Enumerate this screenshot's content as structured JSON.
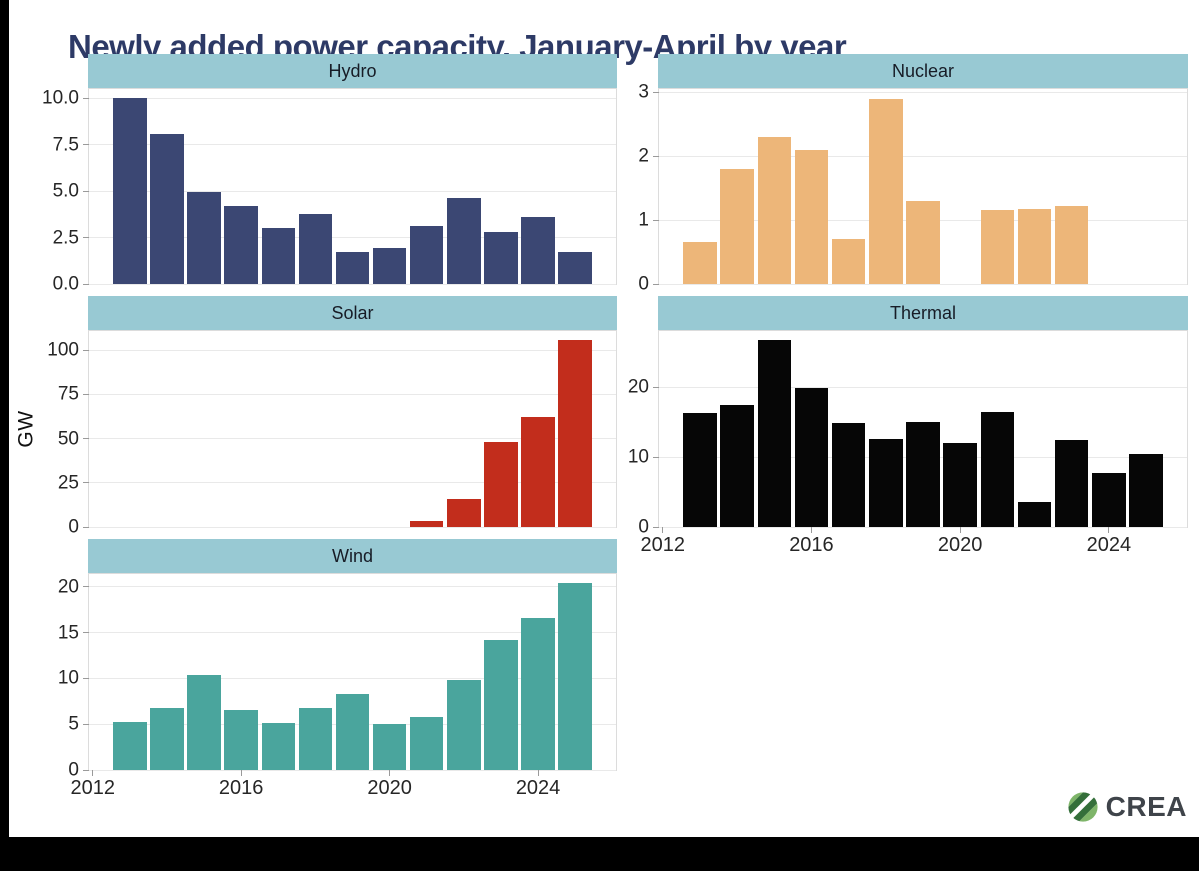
{
  "page": {
    "title": "Newly added power capacity, January-April by year",
    "ylabel": "GW",
    "logo_text": "CREA",
    "colors": {
      "title": "#2d3a66",
      "header_strip": "#98c9d3",
      "gridline": "#e9e9e9",
      "axis_text": "#262626",
      "black_band": "#000000",
      "logo_text": "#3f444a",
      "logo_green_light": "#7eb569",
      "logo_green_dark": "#346f3a"
    }
  },
  "chart_common": {
    "x_domain": [
      2011.9,
      2026.1
    ],
    "xticks": [
      2012,
      2016,
      2020,
      2024
    ],
    "xtick_labels": [
      "2012",
      "2016",
      "2020",
      "2024"
    ],
    "xlabel": "",
    "grid": "horizontal-major-only",
    "legend": "none"
  },
  "chart_data": [
    {
      "type": "bar",
      "title": "Hydro",
      "color": "#3b4773",
      "years": [
        2013,
        2014,
        2015,
        2016,
        2017,
        2018,
        2019,
        2020,
        2021,
        2022,
        2023,
        2024,
        2025
      ],
      "values": [
        10.0,
        8.1,
        4.95,
        4.2,
        3.0,
        3.75,
        1.75,
        1.95,
        3.1,
        4.65,
        2.8,
        3.6,
        1.75
      ],
      "ylim": [
        0,
        10.5
      ],
      "yticks": [
        0,
        2.5,
        5.0,
        7.5,
        10.0
      ],
      "ytick_labels": [
        "0.0",
        "2.5",
        "5.0",
        "7.5",
        "10.0"
      ],
      "show_x_axis": false
    },
    {
      "type": "bar",
      "title": "Nuclear",
      "color": "#edb679",
      "years": [
        2013,
        2014,
        2015,
        2016,
        2017,
        2018,
        2019,
        2020,
        2021,
        2022,
        2023,
        2024,
        2025
      ],
      "values": [
        0.65,
        1.8,
        2.3,
        2.1,
        0.7,
        2.9,
        1.3,
        null,
        1.15,
        1.17,
        1.22,
        null,
        null
      ],
      "ylim": [
        0,
        3.05
      ],
      "yticks": [
        0,
        1,
        2,
        3
      ],
      "ytick_labels": [
        "0",
        "1",
        "2",
        "3"
      ],
      "show_x_axis": false
    },
    {
      "type": "bar",
      "title": "Solar",
      "color": "#c22d1c",
      "years": [
        2013,
        2014,
        2015,
        2016,
        2017,
        2018,
        2019,
        2020,
        2021,
        2022,
        2023,
        2024,
        2025
      ],
      "values": [
        null,
        null,
        null,
        null,
        null,
        null,
        null,
        null,
        3.2,
        15.8,
        48,
        62,
        105.5
      ],
      "ylim": [
        0,
        110.8
      ],
      "yticks": [
        0,
        25,
        50,
        75,
        100
      ],
      "ytick_labels": [
        "0",
        "25",
        "50",
        "75",
        "100"
      ],
      "show_x_axis": false
    },
    {
      "type": "bar",
      "title": "Thermal",
      "color": "#060606",
      "years": [
        2013,
        2014,
        2015,
        2016,
        2017,
        2018,
        2019,
        2020,
        2021,
        2022,
        2023,
        2024,
        2025
      ],
      "values": [
        16.3,
        17.5,
        26.8,
        20.0,
        14.9,
        12.6,
        15.0,
        12.1,
        16.5,
        3.6,
        12.5,
        7.7,
        10.5
      ],
      "ylim": [
        0,
        28.1
      ],
      "yticks": [
        0,
        10,
        20
      ],
      "ytick_labels": [
        "0",
        "10",
        "20"
      ],
      "show_x_axis": true
    },
    {
      "type": "bar",
      "title": "Wind",
      "color": "#4aa59d",
      "years": [
        2013,
        2014,
        2015,
        2016,
        2017,
        2018,
        2019,
        2020,
        2021,
        2022,
        2023,
        2024,
        2025
      ],
      "values": [
        5.2,
        6.8,
        10.4,
        6.6,
        5.1,
        6.8,
        8.3,
        5.0,
        5.8,
        9.8,
        14.2,
        16.6,
        20.4
      ],
      "ylim": [
        0,
        21.4
      ],
      "yticks": [
        0,
        5,
        10,
        15,
        20
      ],
      "ytick_labels": [
        "0",
        "5",
        "10",
        "15",
        "20"
      ],
      "show_x_axis": true
    }
  ]
}
